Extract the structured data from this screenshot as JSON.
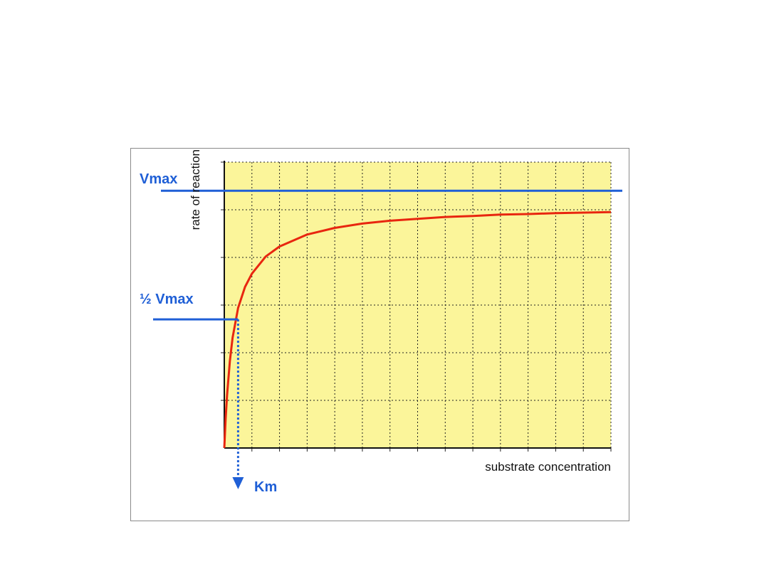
{
  "chart_data": {
    "type": "line",
    "title": "",
    "xlabel": "substrate concentration",
    "ylabel": "rate of reaction",
    "xlim": [
      0,
      14
    ],
    "ylim": [
      0,
      6
    ],
    "grid": true,
    "background_color": "#fbf59a",
    "series": [
      {
        "color": "#e8260f",
        "x": [
          0,
          0.05,
          0.1,
          0.2,
          0.3,
          0.5,
          0.75,
          1,
          1.5,
          2,
          3,
          4,
          5,
          6,
          7,
          8,
          9,
          10,
          11,
          12,
          13,
          14
        ],
        "y": [
          0,
          0.62,
          1.11,
          1.82,
          2.31,
          2.94,
          3.38,
          3.66,
          4.02,
          4.23,
          4.48,
          4.62,
          4.71,
          4.77,
          4.81,
          4.85,
          4.87,
          4.9,
          4.91,
          4.93,
          4.94,
          4.95
        ]
      }
    ],
    "reference_lines": {
      "vmax": {
        "label": "Vmax",
        "y": 5.4,
        "color": "#1f5fd6"
      },
      "half_vmax": {
        "label": "½ Vmax",
        "y": 2.7,
        "color": "#1f5fd6"
      },
      "km": {
        "label": "Km",
        "x": 0.5,
        "color": "#1f5fd6",
        "style": "dotted-arrow"
      }
    }
  }
}
